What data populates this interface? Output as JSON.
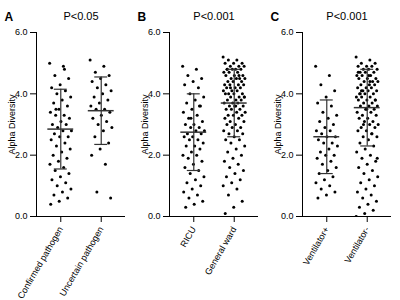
{
  "chart_data": [
    {
      "type": "scatter",
      "panel": "A",
      "title": "P<0.05",
      "y_label": "Alpha Diversity",
      "categories": [
        "Confirmed pathogen",
        "Uncertain pathogen"
      ],
      "values": [
        [
          5.0,
          4.9,
          4.6,
          4.5,
          4.3,
          4.2,
          4.1,
          4.0,
          3.9,
          3.8,
          3.7,
          3.6,
          3.5,
          3.4,
          3.3,
          3.3,
          3.2,
          3.1,
          3.0,
          3.0,
          2.9,
          2.8,
          2.8,
          2.7,
          2.6,
          2.6,
          2.5,
          2.4,
          2.3,
          2.2,
          2.1,
          2.0,
          1.9,
          1.8,
          1.7,
          1.6,
          1.5,
          1.4,
          1.3,
          1.2,
          1.1,
          1.0,
          0.9,
          0.8,
          0.7,
          0.6,
          0.5,
          0.4,
          4.8,
          3.5
        ],
        [
          5.1,
          4.9,
          4.7,
          4.6,
          4.5,
          4.4,
          4.3,
          4.2,
          4.1,
          4.0,
          3.9,
          3.8,
          3.7,
          3.6,
          3.5,
          3.5,
          3.4,
          3.3,
          3.2,
          3.1,
          3.0,
          2.9,
          2.8,
          2.6,
          2.4,
          2.2,
          2.0,
          1.7,
          0.8,
          0.6
        ]
      ],
      "mean": [
        2.85,
        3.45
      ],
      "sd": [
        1.3,
        1.1
      ],
      "color": "#000000",
      "ylim": [
        0,
        6
      ],
      "yticks": [
        0,
        2,
        4,
        6
      ]
    },
    {
      "type": "scatter",
      "panel": "B",
      "title": "P<0.001",
      "y_label": "Alpha Diversity",
      "categories": [
        "RICU",
        "General ward"
      ],
      "values": [
        [
          4.9,
          4.8,
          4.6,
          4.5,
          4.4,
          4.3,
          4.2,
          4.0,
          3.9,
          3.8,
          3.7,
          3.6,
          3.5,
          3.4,
          3.3,
          3.2,
          3.1,
          3.0,
          3.0,
          2.9,
          2.9,
          2.8,
          2.8,
          2.7,
          2.7,
          2.6,
          2.6,
          2.5,
          2.5,
          2.4,
          2.3,
          2.3,
          2.2,
          2.1,
          2.0,
          2.0,
          1.9,
          1.8,
          1.7,
          1.6,
          1.5,
          1.4,
          1.3,
          1.2,
          1.1,
          1.0,
          0.9,
          0.8,
          0.7,
          0.6,
          0.5,
          0.4,
          0.3,
          3.6,
          3.2
        ],
        [
          5.2,
          5.1,
          5.1,
          5.0,
          5.0,
          5.0,
          4.9,
          4.9,
          4.9,
          4.8,
          4.8,
          4.8,
          4.8,
          4.7,
          4.7,
          4.7,
          4.6,
          4.6,
          4.6,
          4.5,
          4.5,
          4.5,
          4.5,
          4.4,
          4.4,
          4.4,
          4.3,
          4.3,
          4.3,
          4.3,
          4.2,
          4.2,
          4.2,
          4.1,
          4.1,
          4.1,
          4.0,
          4.0,
          4.0,
          4.0,
          3.9,
          3.9,
          3.9,
          3.8,
          3.8,
          3.8,
          3.7,
          3.7,
          3.7,
          3.6,
          3.6,
          3.6,
          3.5,
          3.5,
          3.5,
          3.4,
          3.4,
          3.3,
          3.3,
          3.3,
          3.2,
          3.2,
          3.1,
          3.1,
          3.0,
          3.0,
          2.9,
          2.9,
          2.8,
          2.8,
          2.7,
          2.7,
          2.6,
          2.5,
          2.5,
          2.4,
          2.3,
          2.2,
          2.1,
          2.0,
          1.9,
          1.8,
          1.7,
          1.6,
          1.5,
          1.4,
          1.3,
          1.2,
          1.1,
          1.0,
          0.9,
          0.7,
          0.5,
          0.3,
          0.1,
          4.6,
          4.2,
          3.9,
          3.6,
          4.8
        ]
      ],
      "mean": [
        2.75,
        3.7
      ],
      "sd": [
        1.25,
        1.1
      ],
      "color": "#000000",
      "ylim": [
        0,
        6
      ],
      "yticks": [
        0,
        2,
        4,
        6
      ]
    },
    {
      "type": "scatter",
      "panel": "C",
      "title": "P<0.001",
      "y_label": "Alpha Diversity",
      "categories": [
        "Ventilator+",
        "Ventilator-"
      ],
      "values": [
        [
          4.9,
          4.6,
          4.3,
          4.1,
          3.9,
          3.7,
          3.6,
          3.4,
          3.3,
          3.2,
          3.1,
          3.0,
          2.9,
          2.8,
          2.8,
          2.7,
          2.6,
          2.6,
          2.5,
          2.4,
          2.4,
          2.3,
          2.2,
          2.1,
          2.0,
          2.0,
          1.9,
          1.8,
          1.7,
          1.6,
          1.5,
          1.4,
          1.3,
          1.2,
          1.1,
          1.0,
          0.9,
          0.8,
          0.7,
          0.6
        ],
        [
          5.2,
          5.1,
          5.0,
          5.0,
          4.9,
          4.9,
          4.9,
          4.8,
          4.8,
          4.8,
          4.7,
          4.7,
          4.7,
          4.6,
          4.6,
          4.6,
          4.5,
          4.5,
          4.5,
          4.4,
          4.4,
          4.4,
          4.3,
          4.3,
          4.3,
          4.2,
          4.2,
          4.2,
          4.1,
          4.1,
          4.1,
          4.0,
          4.0,
          4.0,
          3.9,
          3.9,
          3.9,
          3.8,
          3.8,
          3.8,
          3.7,
          3.7,
          3.6,
          3.6,
          3.6,
          3.5,
          3.5,
          3.4,
          3.4,
          3.3,
          3.3,
          3.2,
          3.2,
          3.1,
          3.1,
          3.0,
          3.0,
          2.9,
          2.9,
          2.8,
          2.8,
          2.7,
          2.6,
          2.6,
          2.5,
          2.4,
          2.3,
          2.2,
          2.1,
          2.0,
          1.9,
          1.8,
          1.7,
          1.6,
          1.5,
          1.4,
          1.3,
          1.2,
          1.1,
          1.0,
          0.9,
          0.8,
          0.7,
          0.6,
          0.5,
          0.4,
          0.3,
          0.2,
          0.1,
          0.0,
          4.4,
          4.1,
          3.8,
          3.5,
          4.7,
          2.7,
          3.0,
          1.9,
          4.6,
          4.0
        ]
      ],
      "mean": [
        2.6,
        3.55
      ],
      "sd": [
        1.2,
        1.25
      ],
      "color": "#000000",
      "ylim": [
        0,
        6
      ],
      "yticks": [
        0,
        2,
        4,
        6
      ]
    }
  ]
}
